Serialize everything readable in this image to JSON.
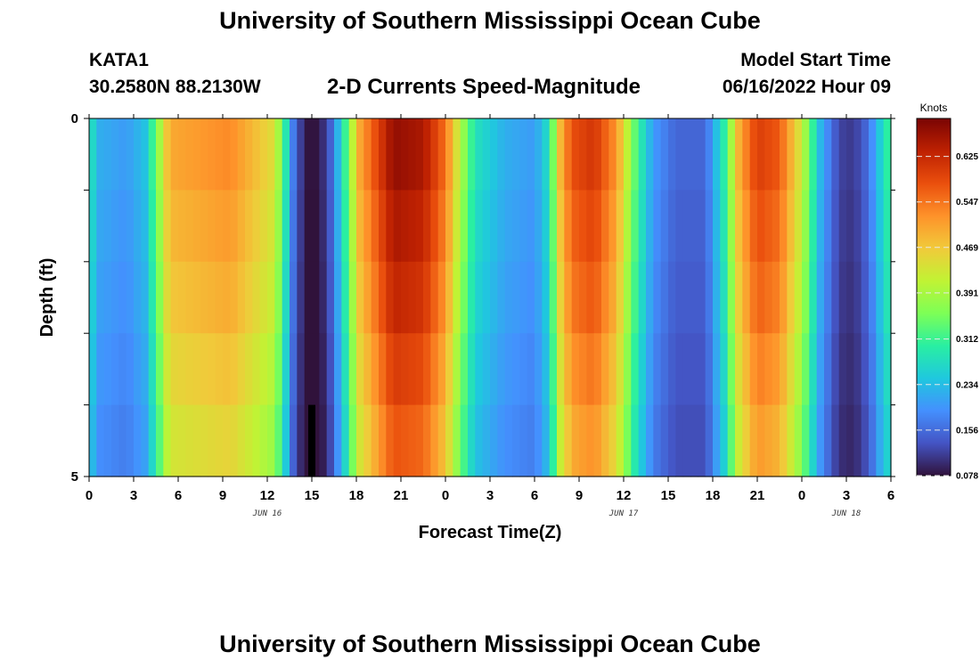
{
  "header": {
    "title": "University of Southern Mississippi Ocean Cube",
    "station": "KATA1",
    "coords": "30.2580N  88.2130W",
    "subtitle": "2-D Currents Speed-Magnitude",
    "model_start_label": "Model Start Time",
    "model_start_value": "06/16/2022 Hour 09"
  },
  "footer": {
    "title": "University of Southern Mississippi Ocean Cube"
  },
  "colors": {
    "ramp": [
      "#30123b",
      "#4454c4",
      "#4490fe",
      "#1fc8de",
      "#29efa2",
      "#7dff56",
      "#c1f334",
      "#f1ca3a",
      "#fe922a",
      "#ea4f0d",
      "#be2102",
      "#7a0403"
    ]
  },
  "chart_data": {
    "type": "heatmap",
    "title": "2-D Currents Speed-Magnitude",
    "xlabel": "Forecast Time(Z)",
    "ylabel": "Depth (ft)",
    "x_tick_labels": [
      "0",
      "3",
      "6",
      "9",
      "12",
      "15",
      "18",
      "21",
      "0",
      "3",
      "6",
      "9",
      "12",
      "15",
      "18",
      "21",
      "0",
      "3",
      "6"
    ],
    "date_labels": [
      {
        "label": "JUN 16",
        "at_hour": 12
      },
      {
        "label": "JUN 17",
        "at_hour": 36
      },
      {
        "label": "JUN 18",
        "at_hour": 51
      }
    ],
    "y_tick_labels": [
      {
        "depth": 0,
        "label": "0"
      },
      {
        "depth": 5,
        "label": "5"
      }
    ],
    "ylim": [
      0,
      5
    ],
    "xlim_hours": [
      0,
      54
    ],
    "time_step_hours": 0.5,
    "depth_bins": 5,
    "colorbar": {
      "title": "Knots",
      "min": 0.078,
      "max": 0.69,
      "ticks": [
        "0.078",
        "0.156",
        "0.234",
        "0.312",
        "0.391",
        "0.469",
        "0.547",
        "0.625"
      ]
    },
    "speed_profile_keyframes": [
      {
        "h": 0,
        "v": 0.3
      },
      {
        "h": 0.6,
        "v": 0.22
      },
      {
        "h": 2.5,
        "v": 0.2
      },
      {
        "h": 3.8,
        "v": 0.24
      },
      {
        "h": 4.6,
        "v": 0.36
      },
      {
        "h": 5.4,
        "v": 0.5
      },
      {
        "h": 9.5,
        "v": 0.53
      },
      {
        "h": 12.5,
        "v": 0.44
      },
      {
        "h": 13.2,
        "v": 0.3
      },
      {
        "h": 13.8,
        "v": 0.16
      },
      {
        "h": 14.6,
        "v": 0.08
      },
      {
        "h": 15.5,
        "v": 0.08
      },
      {
        "h": 16.3,
        "v": 0.15
      },
      {
        "h": 17.2,
        "v": 0.3
      },
      {
        "h": 18.2,
        "v": 0.5
      },
      {
        "h": 20.5,
        "v": 0.67
      },
      {
        "h": 22.5,
        "v": 0.65
      },
      {
        "h": 24.0,
        "v": 0.55
      },
      {
        "h": 25.0,
        "v": 0.4
      },
      {
        "h": 26.0,
        "v": 0.28
      },
      {
        "h": 28.0,
        "v": 0.22
      },
      {
        "h": 30.0,
        "v": 0.2
      },
      {
        "h": 31.0,
        "v": 0.28
      },
      {
        "h": 31.7,
        "v": 0.48
      },
      {
        "h": 32.5,
        "v": 0.58
      },
      {
        "h": 34.0,
        "v": 0.61
      },
      {
        "h": 35.5,
        "v": 0.52
      },
      {
        "h": 36.8,
        "v": 0.33
      },
      {
        "h": 38.0,
        "v": 0.2
      },
      {
        "h": 39.5,
        "v": 0.15
      },
      {
        "h": 41.5,
        "v": 0.15
      },
      {
        "h": 42.8,
        "v": 0.3
      },
      {
        "h": 43.8,
        "v": 0.5
      },
      {
        "h": 45.0,
        "v": 0.6
      },
      {
        "h": 46.5,
        "v": 0.57
      },
      {
        "h": 48.0,
        "v": 0.42
      },
      {
        "h": 49.3,
        "v": 0.22
      },
      {
        "h": 50.5,
        "v": 0.12
      },
      {
        "h": 51.5,
        "v": 0.11
      },
      {
        "h": 52.5,
        "v": 0.16
      },
      {
        "h": 53.5,
        "v": 0.28
      },
      {
        "h": 54.0,
        "v": 0.32
      }
    ],
    "depth_factors": [
      1.0,
      0.97,
      0.94,
      0.9,
      0.86
    ],
    "missing_cells": [
      {
        "hour": 15.0,
        "depth_bin": 4
      }
    ]
  }
}
